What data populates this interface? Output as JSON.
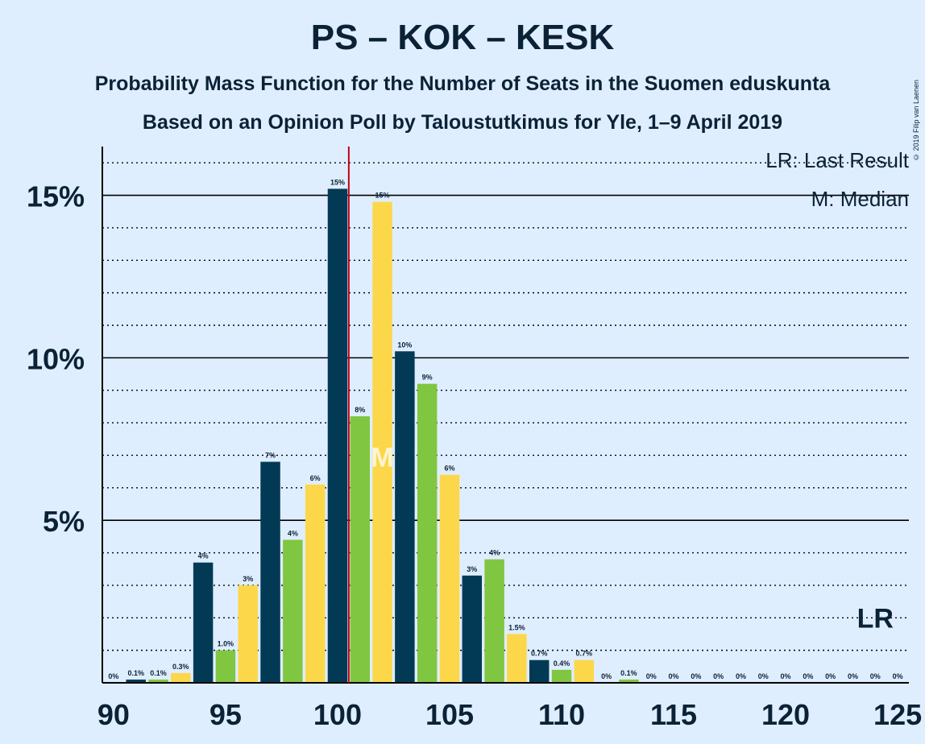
{
  "title": "PS – KOK – KESK",
  "subtitle": "Probability Mass Function for the Number of Seats in the Suomen eduskunta",
  "subtitle2": "Based on an Opinion Poll by Taloustutkimus for Yle, 1–9 April 2019",
  "copyright": "© 2019 Filip van Laenen",
  "legend": {
    "lr": "LR: Last Result",
    "m": "M: Median"
  },
  "colors": {
    "background": "#dfeeff",
    "navy": "#023a55",
    "green": "#80c641",
    "yellow": "#fcd74a",
    "median_line": "#c0001a"
  },
  "chart_data": {
    "type": "bar",
    "x": [
      90,
      91,
      92,
      93,
      94,
      95,
      96,
      97,
      98,
      99,
      100,
      101,
      102,
      103,
      104,
      105,
      106,
      107,
      108,
      109,
      110,
      111,
      112,
      113,
      114,
      115,
      116,
      117,
      118,
      119,
      120,
      121,
      122,
      123,
      124,
      125
    ],
    "values": [
      0,
      0.1,
      0.1,
      0.3,
      3.7,
      1.0,
      3.0,
      6.8,
      4.4,
      6.1,
      15.2,
      8.2,
      14.8,
      10.2,
      9.2,
      6.4,
      3.3,
      3.8,
      1.5,
      0.7,
      0.4,
      0.7,
      0,
      0.1,
      0,
      0,
      0,
      0,
      0,
      0,
      0,
      0,
      0,
      0,
      0,
      0
    ],
    "labels": [
      "0%",
      "0.1%",
      "0.1%",
      "0.3%",
      "4%",
      "1.0%",
      "3%",
      "7%",
      "4%",
      "6%",
      "15%",
      "8%",
      "15%",
      "10%",
      "9%",
      "6%",
      "3%",
      "4%",
      "1.5%",
      "0.7%",
      "0.4%",
      "0.7%",
      "0%",
      "0.1%",
      "0%",
      "0%",
      "0%",
      "0%",
      "0%",
      "0%",
      "0%",
      "0%",
      "0%",
      "0%",
      "0%",
      "0%"
    ],
    "xticks": [
      "90",
      "95",
      "100",
      "105",
      "110",
      "115",
      "120",
      "125"
    ],
    "yticks": [
      "5%",
      "10%",
      "15%"
    ],
    "ylim": [
      0,
      16.5
    ],
    "xlim": [
      89.5,
      125.5
    ],
    "median": 102,
    "median_marker": "M",
    "last_result": 124,
    "last_result_marker": "LR",
    "grid": true
  }
}
